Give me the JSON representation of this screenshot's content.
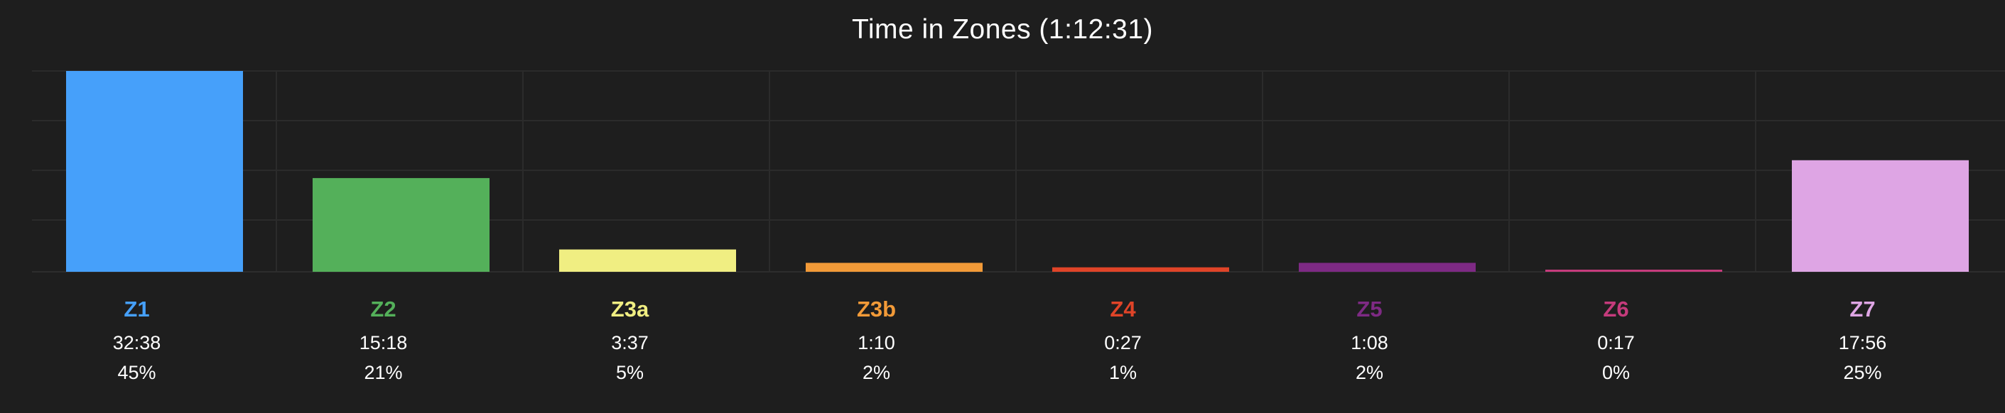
{
  "chart_data": {
    "type": "bar",
    "title": "Time in Zones (1:12:31)",
    "xlabel": "",
    "ylabel": "",
    "ylim": [
      0,
      45
    ],
    "grid": true,
    "categories": [
      "Z1",
      "Z2",
      "Z3a",
      "Z3b",
      "Z4",
      "Z5",
      "Z6",
      "Z7"
    ],
    "values": [
      45,
      21,
      5,
      2,
      1,
      2,
      0,
      25
    ],
    "times": [
      "32:38",
      "15:18",
      "3:37",
      "1:10",
      "0:27",
      "1:08",
      "0:17",
      "17:56"
    ],
    "percent_labels": [
      "45%",
      "21%",
      "5%",
      "2%",
      "1%",
      "2%",
      "0%",
      "25%"
    ],
    "colors": [
      "#46a0fa",
      "#54b05a",
      "#f0ee82",
      "#f29a38",
      "#e04428",
      "#7e2a84",
      "#c53b7c",
      "#dea5e4"
    ]
  }
}
